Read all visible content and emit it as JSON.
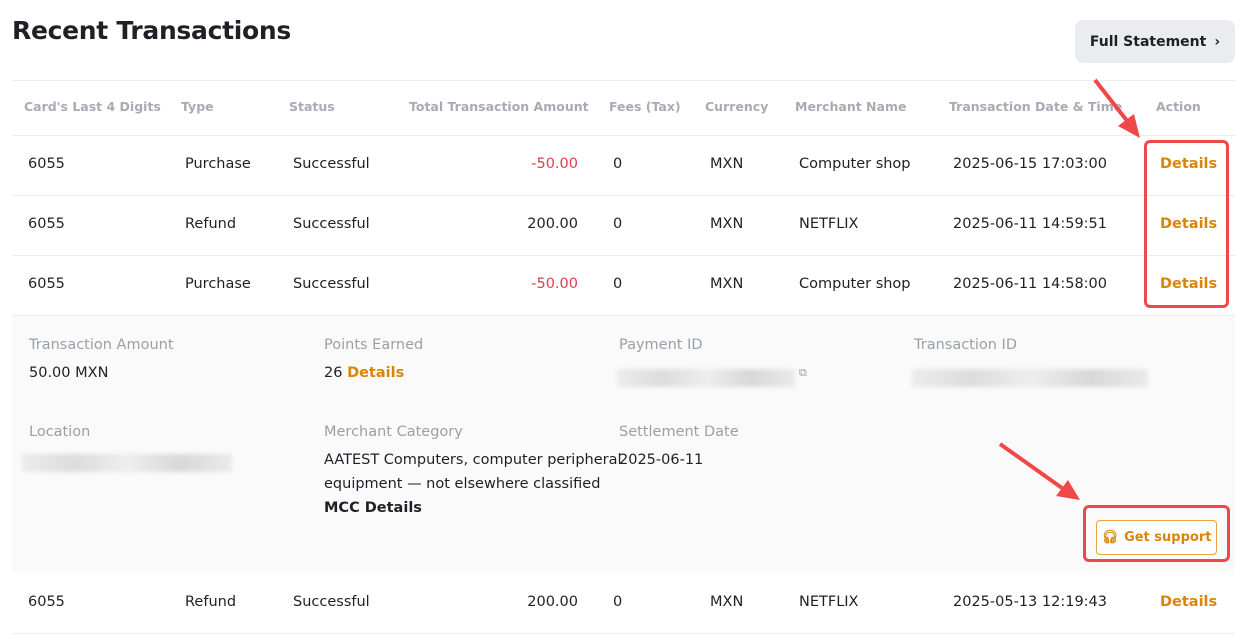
{
  "header": {
    "title": "Recent Transactions",
    "full_statement": "Full Statement"
  },
  "columns": [
    "Card's Last 4 Digits",
    "Type",
    "Status",
    "Total Transaction Amount",
    "Fees (Tax)",
    "Currency",
    "Merchant Name",
    "Transaction Date & Time",
    "Action"
  ],
  "rows": [
    {
      "card": "6055",
      "type": "Purchase",
      "status": "Successful",
      "amount": "-50.00",
      "fees": "0",
      "currency": "MXN",
      "merchant": "Computer shop",
      "datetime": "2025-06-15 17:03:00",
      "action": "Details"
    },
    {
      "card": "6055",
      "type": "Refund",
      "status": "Successful",
      "amount": "200.00",
      "fees": "0",
      "currency": "MXN",
      "merchant": "NETFLIX",
      "datetime": "2025-06-11 14:59:51",
      "action": "Details"
    },
    {
      "card": "6055",
      "type": "Purchase",
      "status": "Successful",
      "amount": "-50.00",
      "fees": "0",
      "currency": "MXN",
      "merchant": "Computer shop",
      "datetime": "2025-06-11 14:58:00",
      "action": "Details"
    },
    {
      "card": "6055",
      "type": "Refund",
      "status": "Successful",
      "amount": "200.00",
      "fees": "0",
      "currency": "MXN",
      "merchant": "NETFLIX",
      "datetime": "2025-05-13 12:19:43",
      "action": "Details"
    }
  ],
  "details": {
    "transaction_amount_label": "Transaction Amount",
    "transaction_amount": "50.00 MXN",
    "points_label": "Points Earned",
    "points": "26",
    "points_link": "Details",
    "payment_id_label": "Payment ID",
    "transaction_id_label": "Transaction ID",
    "location_label": "Location",
    "merchant_category_label": "Merchant Category",
    "merchant_category_1": "AATEST Computers, computer peripheral",
    "merchant_category_2": "equipment — not elsewhere classified",
    "mcc_link": "MCC Details",
    "settlement_label": "Settlement Date",
    "settlement": "2025-06-11",
    "support": "Get support"
  },
  "colors": {
    "accent": "#d9850a",
    "negative": "#e03e4b",
    "annotation": "#f04848"
  }
}
